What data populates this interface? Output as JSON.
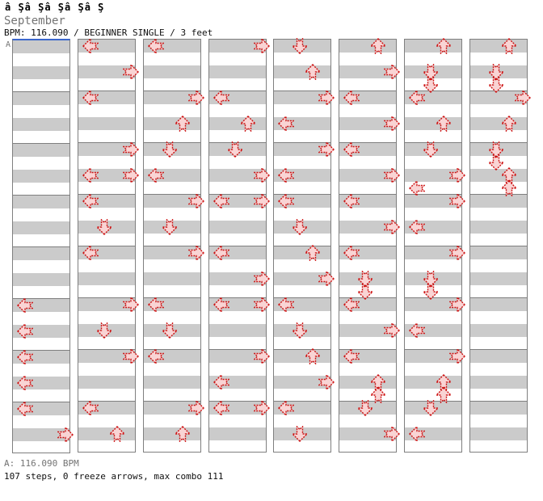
{
  "header": {
    "raw_title": "â Şâ Şâ Şâ Şâ Ş",
    "title": "September",
    "info": "BPM: 116.090 / BEGINNER SINGLE / 3 feet"
  },
  "section_label": "A",
  "footer": {
    "bpm_line": "A: 116.090 BPM",
    "stats_line": "107 steps, 0 freeze arrows, max combo 111"
  },
  "colors": {
    "arrow_stroke": "#cc1111",
    "arrow_fill": "#f9d4d4",
    "stripe_gray": "#cbcbcb",
    "panel_border": "#7f7f7f",
    "section_line_blue": "#3a66cc",
    "muted_text": "#747474"
  },
  "chart_data": {
    "type": "step-chart",
    "title": "September",
    "bpm": 116.09,
    "difficulty": "BEGINNER SINGLE",
    "feet": 3,
    "steps": 107,
    "freeze_arrows": 0,
    "max_combo": 111,
    "panels_count": 8,
    "rows_per_panel": 32,
    "beats_per_measure": 4,
    "lane_order": [
      "left",
      "down",
      "up",
      "right"
    ],
    "panels": [
      [
        {
          "dir": "left",
          "row": 20
        },
        {
          "dir": "left",
          "row": 22
        },
        {
          "dir": "left",
          "row": 24
        },
        {
          "dir": "left",
          "row": 26
        },
        {
          "dir": "left",
          "row": 28
        },
        {
          "dir": "right",
          "row": 30
        }
      ],
      [
        {
          "dir": "left",
          "row": 0
        },
        {
          "dir": "right",
          "row": 2
        },
        {
          "dir": "left",
          "row": 4
        },
        {
          "dir": "right",
          "row": 8
        },
        {
          "dir": "left",
          "row": 10
        },
        {
          "dir": "right",
          "row": 10
        },
        {
          "dir": "left",
          "row": 12
        },
        {
          "dir": "down",
          "row": 14
        },
        {
          "dir": "left",
          "row": 16
        },
        {
          "dir": "right",
          "row": 20
        },
        {
          "dir": "down",
          "row": 22
        },
        {
          "dir": "right",
          "row": 24
        },
        {
          "dir": "left",
          "row": 28
        },
        {
          "dir": "up",
          "row": 30
        }
      ],
      [
        {
          "dir": "left",
          "row": 0
        },
        {
          "dir": "right",
          "row": 4
        },
        {
          "dir": "up",
          "row": 6
        },
        {
          "dir": "down",
          "row": 8
        },
        {
          "dir": "left",
          "row": 10
        },
        {
          "dir": "right",
          "row": 12
        },
        {
          "dir": "down",
          "row": 14
        },
        {
          "dir": "right",
          "row": 16
        },
        {
          "dir": "left",
          "row": 20
        },
        {
          "dir": "down",
          "row": 22
        },
        {
          "dir": "left",
          "row": 24
        },
        {
          "dir": "right",
          "row": 28
        },
        {
          "dir": "up",
          "row": 30
        }
      ],
      [
        {
          "dir": "right",
          "row": 0
        },
        {
          "dir": "left",
          "row": 4
        },
        {
          "dir": "up",
          "row": 6
        },
        {
          "dir": "down",
          "row": 8
        },
        {
          "dir": "right",
          "row": 10
        },
        {
          "dir": "left",
          "row": 12
        },
        {
          "dir": "right",
          "row": 12
        },
        {
          "dir": "left",
          "row": 16
        },
        {
          "dir": "right",
          "row": 18
        },
        {
          "dir": "left",
          "row": 20
        },
        {
          "dir": "right",
          "row": 20
        },
        {
          "dir": "right",
          "row": 24
        },
        {
          "dir": "left",
          "row": 26
        },
        {
          "dir": "left",
          "row": 28
        },
        {
          "dir": "right",
          "row": 28
        }
      ],
      [
        {
          "dir": "down",
          "row": 0
        },
        {
          "dir": "up",
          "row": 2
        },
        {
          "dir": "right",
          "row": 4
        },
        {
          "dir": "left",
          "row": 6
        },
        {
          "dir": "right",
          "row": 8
        },
        {
          "dir": "left",
          "row": 10
        },
        {
          "dir": "left",
          "row": 12
        },
        {
          "dir": "down",
          "row": 14
        },
        {
          "dir": "up",
          "row": 16
        },
        {
          "dir": "right",
          "row": 18
        },
        {
          "dir": "left",
          "row": 20
        },
        {
          "dir": "down",
          "row": 22
        },
        {
          "dir": "up",
          "row": 24
        },
        {
          "dir": "right",
          "row": 26
        },
        {
          "dir": "left",
          "row": 28
        },
        {
          "dir": "down",
          "row": 30
        }
      ],
      [
        {
          "dir": "up",
          "row": 0
        },
        {
          "dir": "right",
          "row": 2
        },
        {
          "dir": "left",
          "row": 4
        },
        {
          "dir": "right",
          "row": 6
        },
        {
          "dir": "left",
          "row": 8
        },
        {
          "dir": "right",
          "row": 10
        },
        {
          "dir": "left",
          "row": 12
        },
        {
          "dir": "right",
          "row": 14
        },
        {
          "dir": "left",
          "row": 16
        },
        {
          "dir": "down",
          "row": 18
        },
        {
          "dir": "down",
          "row": 19
        },
        {
          "dir": "left",
          "row": 20
        },
        {
          "dir": "right",
          "row": 22
        },
        {
          "dir": "left",
          "row": 24
        },
        {
          "dir": "up",
          "row": 26
        },
        {
          "dir": "up",
          "row": 27
        },
        {
          "dir": "down",
          "row": 28
        },
        {
          "dir": "right",
          "row": 30
        }
      ],
      [
        {
          "dir": "up",
          "row": 0
        },
        {
          "dir": "down",
          "row": 2
        },
        {
          "dir": "down",
          "row": 3
        },
        {
          "dir": "left",
          "row": 4
        },
        {
          "dir": "up",
          "row": 6
        },
        {
          "dir": "down",
          "row": 8
        },
        {
          "dir": "right",
          "row": 10
        },
        {
          "dir": "left",
          "row": 11
        },
        {
          "dir": "right",
          "row": 12
        },
        {
          "dir": "left",
          "row": 14
        },
        {
          "dir": "right",
          "row": 16
        },
        {
          "dir": "down",
          "row": 18
        },
        {
          "dir": "down",
          "row": 19
        },
        {
          "dir": "right",
          "row": 20
        },
        {
          "dir": "left",
          "row": 22
        },
        {
          "dir": "right",
          "row": 24
        },
        {
          "dir": "up",
          "row": 26
        },
        {
          "dir": "up",
          "row": 27
        },
        {
          "dir": "down",
          "row": 28
        },
        {
          "dir": "left",
          "row": 30
        }
      ],
      [
        {
          "dir": "up",
          "row": 0
        },
        {
          "dir": "down",
          "row": 2
        },
        {
          "dir": "down",
          "row": 3
        },
        {
          "dir": "right",
          "row": 4
        },
        {
          "dir": "up",
          "row": 6
        },
        {
          "dir": "down",
          "row": 8
        },
        {
          "dir": "down",
          "row": 9
        },
        {
          "dir": "up",
          "row": 10
        },
        {
          "dir": "up",
          "row": 11
        }
      ]
    ]
  }
}
